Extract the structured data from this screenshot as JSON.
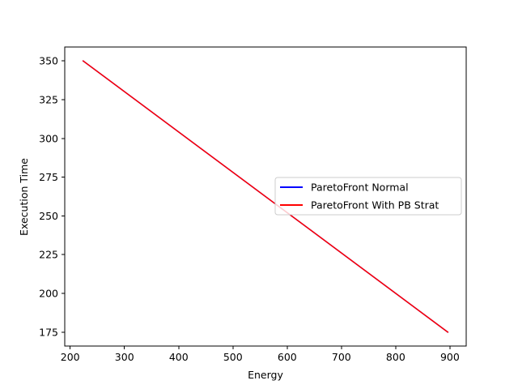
{
  "chart_data": {
    "type": "line",
    "title": "",
    "xlabel": "Energy",
    "ylabel": "Execution Time",
    "ylabel_color": "#0000ff",
    "xlim": [
      190,
      930
    ],
    "ylim": [
      166,
      359
    ],
    "x_ticks": [
      200,
      300,
      400,
      500,
      600,
      700,
      800,
      900
    ],
    "y_ticks": [
      175,
      200,
      225,
      250,
      275,
      300,
      325,
      350
    ],
    "x_tick_labels": [
      "200",
      "300",
      "400",
      "500",
      "600",
      "700",
      "800",
      "900"
    ],
    "y_tick_labels": [
      "175",
      "200",
      "225",
      "250",
      "275",
      "300",
      "325",
      "350"
    ],
    "grid": false,
    "legend_position": "center-right",
    "series": [
      {
        "name": "ParetoFront Normal",
        "color": "#0000ff",
        "x": [
          224,
          896
        ],
        "y": [
          350,
          175
        ]
      },
      {
        "name": "ParetoFront With PB Strat",
        "color": "#ff0000",
        "x": [
          224,
          896
        ],
        "y": [
          350,
          175
        ]
      }
    ]
  }
}
